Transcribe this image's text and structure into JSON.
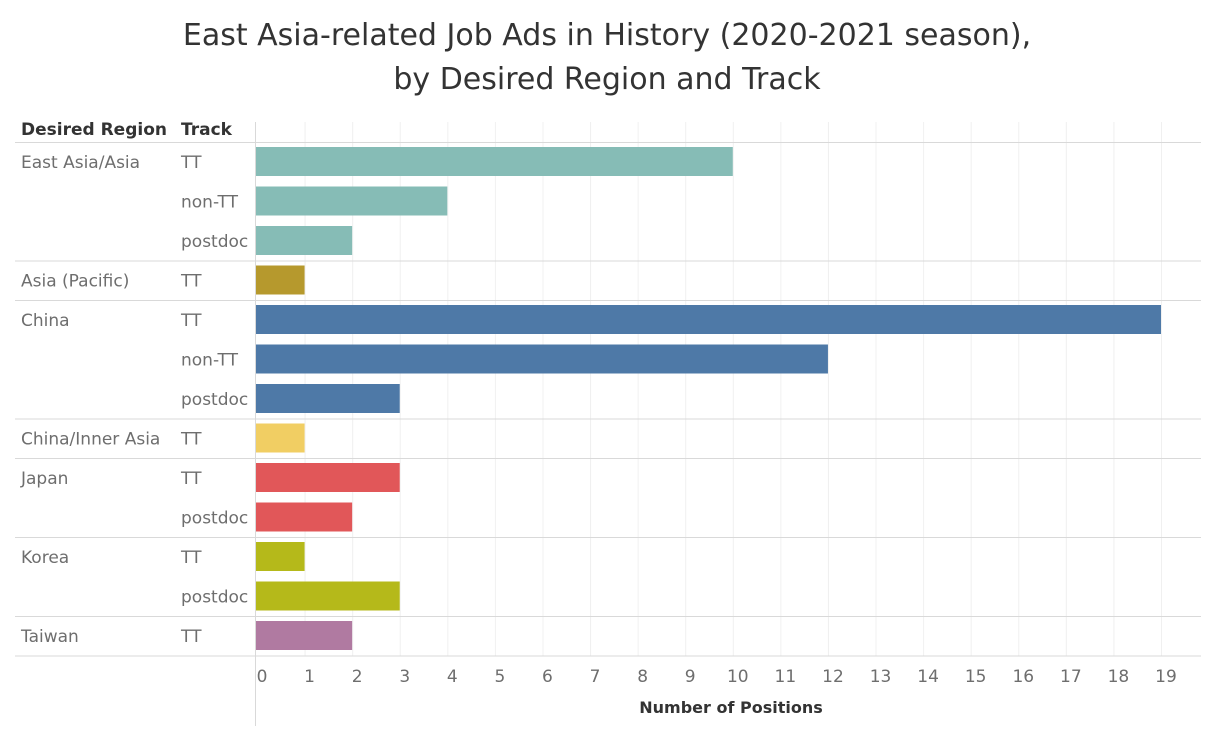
{
  "chart_data": {
    "type": "bar",
    "orientation": "horizontal",
    "title_line1": "East Asia-related Job Ads in History (2020-2021 season),",
    "title_line2": "by Desired Region and Track",
    "column_headers": {
      "region": "Desired Region",
      "track": "Track"
    },
    "xlabel": "Number of Positions",
    "xlim": [
      0,
      19
    ],
    "x_ticks": [
      0,
      1,
      2,
      3,
      4,
      5,
      6,
      7,
      8,
      9,
      10,
      11,
      12,
      13,
      14,
      15,
      16,
      17,
      18,
      19
    ],
    "grid": true,
    "groups": [
      {
        "region": "East Asia/Asia",
        "color": "#86bcb6",
        "rows": [
          {
            "track": "TT",
            "value": 10
          },
          {
            "track": "non-TT",
            "value": 4
          },
          {
            "track": "postdoc",
            "value": 2
          }
        ]
      },
      {
        "region": "Asia (Pacific)",
        "color": "#b6992d",
        "rows": [
          {
            "track": "TT",
            "value": 1
          }
        ]
      },
      {
        "region": "China",
        "color": "#4e79a7",
        "rows": [
          {
            "track": "TT",
            "value": 19
          },
          {
            "track": "non-TT",
            "value": 12
          },
          {
            "track": "postdoc",
            "value": 3
          }
        ]
      },
      {
        "region": "China/Inner Asia",
        "color": "#f1ce63",
        "rows": [
          {
            "track": "TT",
            "value": 1
          }
        ]
      },
      {
        "region": "Japan",
        "color": "#e15759",
        "rows": [
          {
            "track": "TT",
            "value": 3
          },
          {
            "track": "postdoc",
            "value": 2
          }
        ]
      },
      {
        "region": "Korea",
        "color": "#b5b91a",
        "rows": [
          {
            "track": "TT",
            "value": 1
          },
          {
            "track": "postdoc",
            "value": 3
          }
        ]
      },
      {
        "region": "Taiwan",
        "color": "#b07aa1",
        "rows": [
          {
            "track": "TT",
            "value": 2
          }
        ]
      }
    ]
  }
}
